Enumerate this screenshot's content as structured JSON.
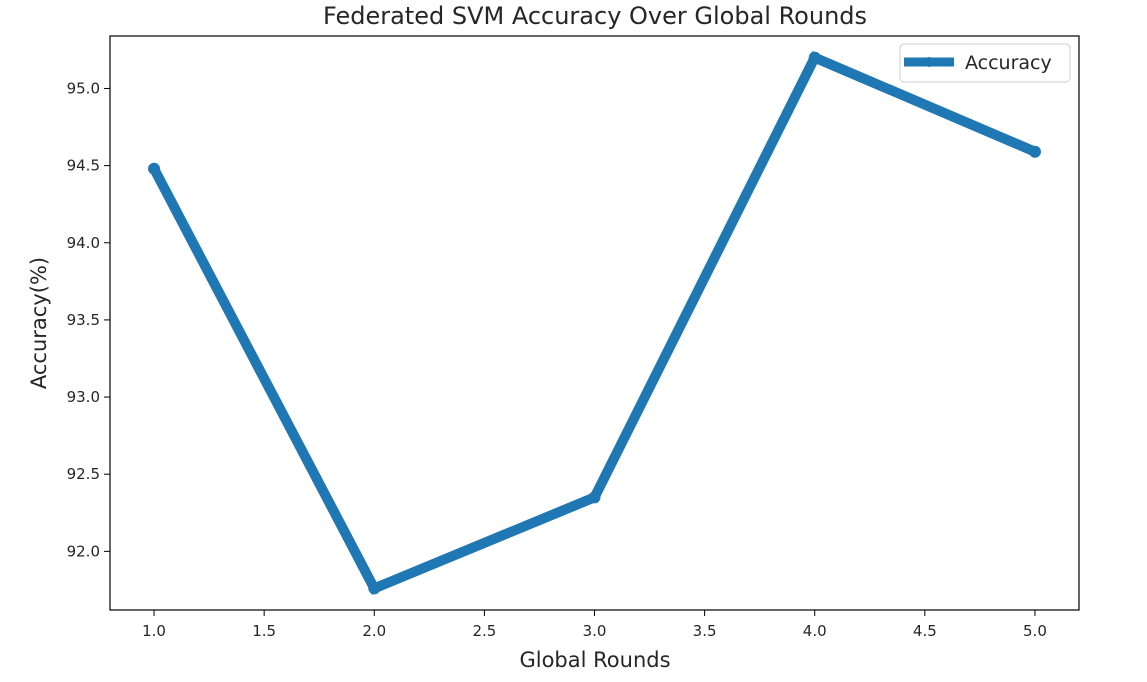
{
  "chart_data": {
    "type": "line",
    "title": "Federated SVM Accuracy Over Global Rounds",
    "xlabel": "Global Rounds",
    "ylabel": "Accuracy(%)",
    "x": [
      1.0,
      2.0,
      3.0,
      4.0,
      5.0
    ],
    "series": [
      {
        "name": "Accuracy",
        "values": [
          94.48,
          91.76,
          92.35,
          95.2,
          94.59
        ],
        "color": "#1f77b4"
      }
    ],
    "xlim": [
      0.8,
      5.2
    ],
    "ylim": [
      91.62,
      95.34
    ],
    "xticks": [
      1.0,
      1.5,
      2.0,
      2.5,
      3.0,
      3.5,
      4.0,
      4.5,
      5.0
    ],
    "xtick_labels": [
      "1.0",
      "1.5",
      "2.0",
      "2.5",
      "3.0",
      "3.5",
      "4.0",
      "4.5",
      "5.0"
    ],
    "yticks": [
      92.0,
      92.5,
      93.0,
      93.5,
      94.0,
      94.5,
      95.0
    ],
    "ytick_labels": [
      "92.0",
      "92.5",
      "93.0",
      "93.5",
      "94.0",
      "94.5",
      "95.0"
    ],
    "grid": false,
    "legend_position": "top-right"
  }
}
